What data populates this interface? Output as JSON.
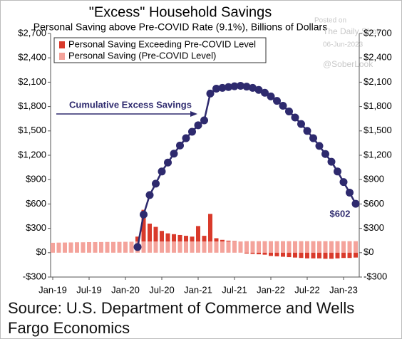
{
  "chart_data": {
    "type": "bar",
    "title": "\"Excess\" Household Savings",
    "subtitle": "Personal Saving above Pre-COVID Rate (9.1%), Billions of Dollars",
    "watermark": [
      "Posted on",
      "The Daily Shot",
      "06-Jun-2023",
      "@SoberLook"
    ],
    "source": "Source: U.S. Department of Commerce and Wells Fargo Economics",
    "categories": [
      "Jan-19",
      null,
      null,
      null,
      null,
      null,
      "Jul-19",
      null,
      null,
      null,
      null,
      null,
      "Jan-20",
      null,
      null,
      null,
      null,
      null,
      "Jul-20",
      null,
      null,
      null,
      null,
      null,
      "Jan-21",
      null,
      null,
      null,
      null,
      null,
      "Jul-21",
      null,
      null,
      null,
      null,
      null,
      "Jan-22",
      null,
      null,
      null,
      null,
      null,
      "Jul-22",
      null,
      null,
      null,
      null,
      null,
      "Jan-23",
      null,
      null
    ],
    "series": [
      {
        "name": "Personal Saving Exceeding Pre-COVID Level",
        "type": "bar",
        "color": "#d93a2b",
        "values": [
          null,
          null,
          null,
          null,
          null,
          null,
          null,
          null,
          null,
          null,
          null,
          null,
          null,
          null,
          60,
          390,
          220,
          180,
          130,
          100,
          90,
          80,
          70,
          60,
          190,
          70,
          340,
          40,
          20,
          10,
          5,
          0,
          -10,
          -15,
          -20,
          -25,
          -40,
          -45,
          -50,
          -55,
          -60,
          -65,
          -70,
          -70,
          -70,
          -75,
          -75,
          -70,
          -65,
          -65,
          -60
        ]
      },
      {
        "name": "Personal Saving (Pre-COVID Level)",
        "type": "bar",
        "color": "#f4a39b",
        "values": [
          122,
          124,
          125,
          126,
          128,
          128,
          130,
          130,
          131,
          132,
          132,
          133,
          134,
          135,
          138,
          138,
          138,
          138,
          138,
          138,
          138,
          138,
          138,
          138,
          138,
          138,
          138,
          138,
          138,
          138,
          138,
          138,
          142,
          142,
          142,
          142,
          142,
          142,
          142,
          142,
          142,
          142,
          142,
          142,
          142,
          142,
          142,
          142,
          142,
          142,
          142
        ]
      },
      {
        "name": "Cumulative Excess Savings",
        "type": "line",
        "color": "#2e2a6e",
        "values": [
          null,
          null,
          null,
          null,
          null,
          null,
          null,
          null,
          null,
          null,
          null,
          null,
          null,
          null,
          70,
          470,
          710,
          850,
          1000,
          1110,
          1220,
          1320,
          1410,
          1490,
          1570,
          1630,
          1960,
          2020,
          2030,
          2040,
          2050,
          2055,
          2045,
          2030,
          2005,
          1970,
          1925,
          1870,
          1810,
          1740,
          1665,
          1585,
          1500,
          1410,
          1315,
          1215,
          1120,
          1000,
          870,
          740,
          602
        ],
        "value_labels": [
          null,
          null,
          null,
          null,
          null,
          null,
          null,
          null,
          null,
          null,
          null,
          null,
          null,
          null,
          null,
          null,
          null,
          null,
          null,
          null,
          null,
          null,
          null,
          null,
          null,
          null,
          null,
          null,
          null,
          null,
          null,
          null,
          null,
          null,
          null,
          null,
          null,
          null,
          null,
          null,
          null,
          null,
          null,
          null,
          null,
          null,
          null,
          null,
          null,
          null,
          "$602"
        ]
      }
    ],
    "ylim": [
      -300,
      2700
    ],
    "yticks": [
      {
        "value": -300,
        "label": "-$300"
      },
      {
        "value": 0,
        "label": "$0"
      },
      {
        "value": 300,
        "label": "$300"
      },
      {
        "value": 600,
        "label": "$600"
      },
      {
        "value": 900,
        "label": "$900"
      },
      {
        "value": 1200,
        "label": "$1,200"
      },
      {
        "value": 1500,
        "label": "$1,500"
      },
      {
        "value": 1800,
        "label": "$1,800"
      },
      {
        "value": 2100,
        "label": "$2,100"
      },
      {
        "value": 2400,
        "label": "$2,400"
      },
      {
        "value": 2700,
        "label": "$2,700"
      }
    ],
    "y_axis_both_sides": true,
    "legend": "upper left"
  }
}
